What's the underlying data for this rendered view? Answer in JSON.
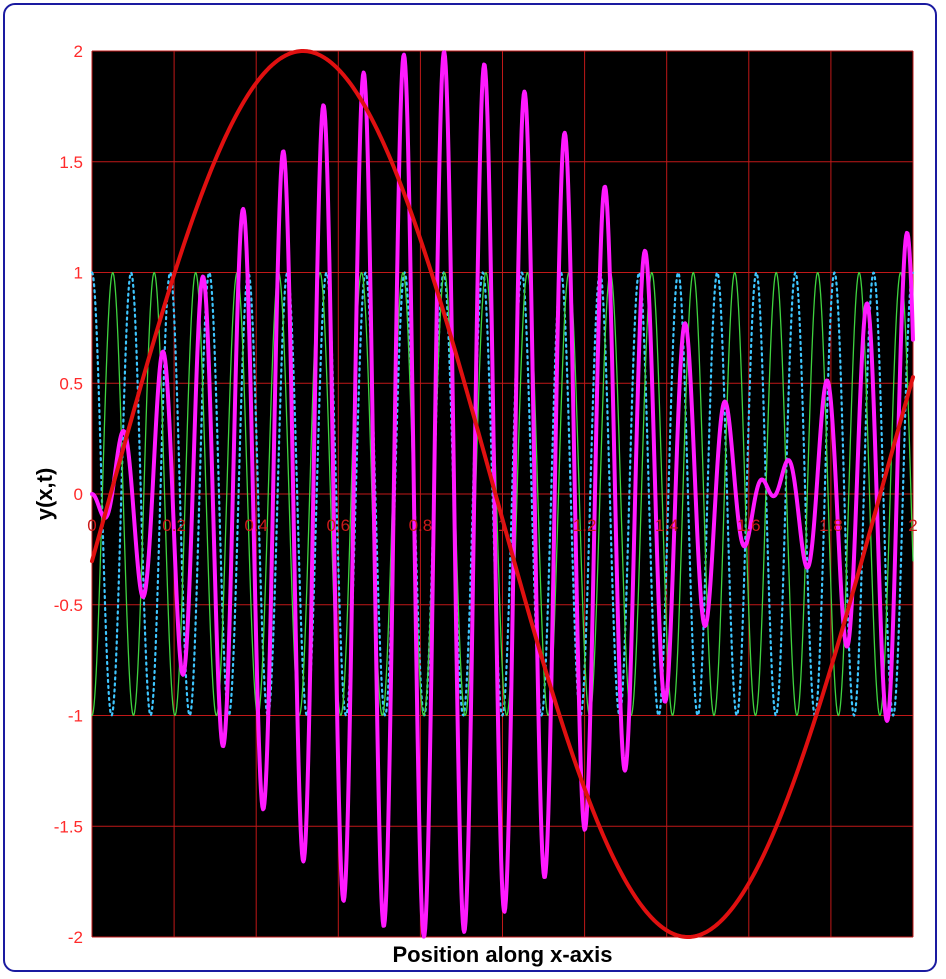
{
  "chart_data": {
    "type": "line",
    "title": "",
    "xlabel": "Position along x-axis",
    "ylabel": "y(x,t)",
    "xlim": [
      0,
      2
    ],
    "ylim": [
      -2,
      2
    ],
    "x_ticks": [
      "0",
      "0.2",
      "0.4",
      "0.6",
      "0.8",
      "1",
      "1.2",
      "1.4",
      "1.6",
      "1.8",
      "2"
    ],
    "y_ticks": [
      "2",
      "1.5",
      "1",
      "0.5",
      "0",
      "-0.5",
      "-1",
      "-1.5",
      "-2"
    ],
    "grid": true,
    "legend": "none",
    "colors": {
      "plot_background": "#000000",
      "grid": "#c01818",
      "wave_1": "#3ec6ff",
      "wave_2": "#3fd33f",
      "sum": "#ff1aff",
      "envelope": "#e01010"
    },
    "series": [
      {
        "style": "dotted",
        "color": "#3ec6ff",
        "equation": {
          "amplitude": 1,
          "wavenumber": 66,
          "phase": 1.571,
          "offset": 0
        },
        "x_range": [
          0,
          2
        ],
        "points": 1200
      },
      {
        "style": "solid-thin",
        "color": "#3fd33f",
        "equation": {
          "amplitude": 1,
          "wavenumber": 62.2,
          "phase": -1.571,
          "offset": 0
        },
        "x_range": [
          0,
          2
        ],
        "points": 1200
      },
      {
        "style": "solid-thick",
        "color": "#ff1aff",
        "equation": "sum of the two waves above",
        "x_range": [
          0,
          2
        ],
        "points": 1200
      },
      {
        "style": "solid-thick",
        "color": "#e01010",
        "equation": {
          "amplitude": 2,
          "wavenumber": 3.351,
          "phase": -0.152,
          "offset": 0
        },
        "x_range": [
          0,
          2
        ],
        "points": 400
      }
    ]
  }
}
